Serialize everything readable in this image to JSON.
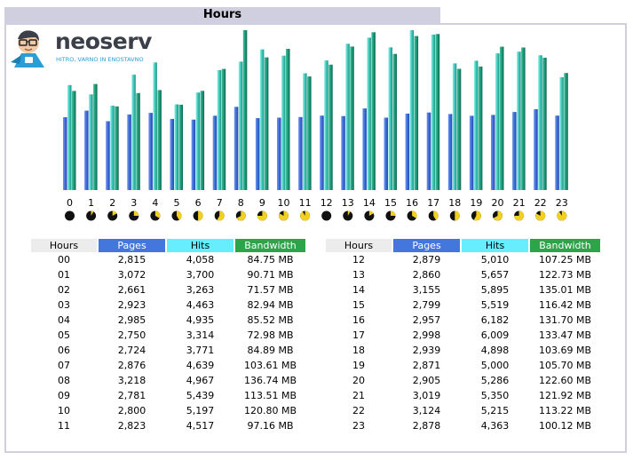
{
  "title": "Hours",
  "logo": {
    "name": "neoserv",
    "tagline": "HITRO, VARNO IN ENOSTAVNO"
  },
  "colors": {
    "pages": "#3f6fd8",
    "hits": "#4fd8c8",
    "bandwidth": "#1f9a7a",
    "title_bg": "#cfcfe0"
  },
  "table_headers": {
    "hours": "Hours",
    "pages": "Pages",
    "hits": "Hits",
    "bandwidth": "Bandwidth"
  },
  "chart_data": {
    "type": "bar",
    "categories": [
      "0",
      "1",
      "2",
      "3",
      "4",
      "5",
      "6",
      "7",
      "8",
      "9",
      "10",
      "11",
      "12",
      "13",
      "14",
      "15",
      "16",
      "17",
      "18",
      "19",
      "20",
      "21",
      "22",
      "23"
    ],
    "series": [
      {
        "name": "Pages",
        "values": [
          2815,
          3072,
          2661,
          2923,
          2985,
          2750,
          2724,
          2876,
          3218,
          2781,
          2800,
          2823,
          2879,
          2860,
          3155,
          2799,
          2957,
          2998,
          2939,
          2871,
          2905,
          3019,
          3124,
          2878
        ]
      },
      {
        "name": "Hits",
        "values": [
          4058,
          3700,
          3263,
          4463,
          4935,
          3314,
          3771,
          4639,
          4967,
          5439,
          5197,
          4517,
          5010,
          5657,
          5895,
          5519,
          6182,
          6009,
          4898,
          5000,
          5286,
          5350,
          5215,
          4363
        ]
      },
      {
        "name": "Bandwidth",
        "values": [
          84.75,
          90.71,
          71.57,
          82.94,
          85.52,
          72.98,
          84.89,
          103.61,
          136.74,
          113.51,
          120.8,
          97.16,
          107.25,
          122.73,
          135.01,
          116.42,
          131.7,
          133.47,
          103.69,
          105.7,
          122.6,
          121.92,
          113.22,
          100.12
        ]
      }
    ]
  },
  "rows_left": [
    {
      "hour": "00",
      "pages": "2,815",
      "hits": "4,058",
      "bandwidth": "84.75 MB"
    },
    {
      "hour": "01",
      "pages": "3,072",
      "hits": "3,700",
      "bandwidth": "90.71 MB"
    },
    {
      "hour": "02",
      "pages": "2,661",
      "hits": "3,263",
      "bandwidth": "71.57 MB"
    },
    {
      "hour": "03",
      "pages": "2,923",
      "hits": "4,463",
      "bandwidth": "82.94 MB"
    },
    {
      "hour": "04",
      "pages": "2,985",
      "hits": "4,935",
      "bandwidth": "85.52 MB"
    },
    {
      "hour": "05",
      "pages": "2,750",
      "hits": "3,314",
      "bandwidth": "72.98 MB"
    },
    {
      "hour": "06",
      "pages": "2,724",
      "hits": "3,771",
      "bandwidth": "84.89 MB"
    },
    {
      "hour": "07",
      "pages": "2,876",
      "hits": "4,639",
      "bandwidth": "103.61 MB"
    },
    {
      "hour": "08",
      "pages": "3,218",
      "hits": "4,967",
      "bandwidth": "136.74 MB"
    },
    {
      "hour": "09",
      "pages": "2,781",
      "hits": "5,439",
      "bandwidth": "113.51 MB"
    },
    {
      "hour": "10",
      "pages": "2,800",
      "hits": "5,197",
      "bandwidth": "120.80 MB"
    },
    {
      "hour": "11",
      "pages": "2,823",
      "hits": "4,517",
      "bandwidth": "97.16 MB"
    }
  ],
  "rows_right": [
    {
      "hour": "12",
      "pages": "2,879",
      "hits": "5,010",
      "bandwidth": "107.25 MB"
    },
    {
      "hour": "13",
      "pages": "2,860",
      "hits": "5,657",
      "bandwidth": "122.73 MB"
    },
    {
      "hour": "14",
      "pages": "3,155",
      "hits": "5,895",
      "bandwidth": "135.01 MB"
    },
    {
      "hour": "15",
      "pages": "2,799",
      "hits": "5,519",
      "bandwidth": "116.42 MB"
    },
    {
      "hour": "16",
      "pages": "2,957",
      "hits": "6,182",
      "bandwidth": "131.70 MB"
    },
    {
      "hour": "17",
      "pages": "2,998",
      "hits": "6,009",
      "bandwidth": "133.47 MB"
    },
    {
      "hour": "18",
      "pages": "2,939",
      "hits": "4,898",
      "bandwidth": "103.69 MB"
    },
    {
      "hour": "19",
      "pages": "2,871",
      "hits": "5,000",
      "bandwidth": "105.70 MB"
    },
    {
      "hour": "20",
      "pages": "2,905",
      "hits": "5,286",
      "bandwidth": "122.60 MB"
    },
    {
      "hour": "21",
      "pages": "3,019",
      "hits": "5,350",
      "bandwidth": "121.92 MB"
    },
    {
      "hour": "22",
      "pages": "3,124",
      "hits": "5,215",
      "bandwidth": "113.22 MB"
    },
    {
      "hour": "23",
      "pages": "2,878",
      "hits": "4,363",
      "bandwidth": "100.12 MB"
    }
  ]
}
